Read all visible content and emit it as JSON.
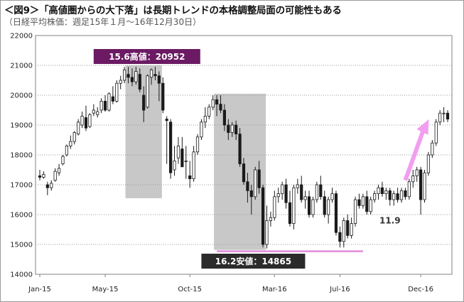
{
  "header": {
    "title": "＜図9＞「高値圏からの大下落」は長期トレンドの本格調整局面の可能性もある",
    "subtitle": "（日経平均株価：週足15年１月～16年12月30日）"
  },
  "colors": {
    "up": "#ffffff",
    "down": "#1a1a1a",
    "shade": "#c8c8c8",
    "high_label_bg": "#6b1a63",
    "low_label_bg": "#2b2b2b",
    "support_line": "#e28ad9",
    "arrow": "#f29ef0"
  },
  "chart_data": {
    "type": "candlestick",
    "frequency": "weekly",
    "ylim": [
      14000,
      22000
    ],
    "y_ticks": [
      "22000",
      "21000",
      "20000",
      "19000",
      "18000",
      "17000",
      "16000",
      "15000",
      "14000"
    ],
    "x_ticks": [
      "Jan-15",
      "May-15",
      "Oct-15",
      "Mar-16",
      "Jul-16",
      "Dec-16"
    ],
    "grid": "horizontal dotted",
    "candles": [
      [
        17300,
        17500,
        17150,
        17250
      ],
      [
        17250,
        17450,
        17200,
        17350
      ],
      [
        17000,
        17100,
        16650,
        16900
      ],
      [
        16900,
        17150,
        16800,
        17050
      ],
      [
        17150,
        17550,
        17100,
        17450
      ],
      [
        17400,
        17700,
        17300,
        17550
      ],
      [
        17700,
        18000,
        17650,
        17950
      ],
      [
        18000,
        18350,
        17950,
        18300
      ],
      [
        18300,
        18650,
        18200,
        18450
      ],
      [
        18450,
        18800,
        18350,
        18750
      ],
      [
        18700,
        19200,
        18650,
        19100
      ],
      [
        19000,
        19450,
        18900,
        19300
      ],
      [
        19250,
        19650,
        18800,
        18900
      ],
      [
        18950,
        19400,
        18900,
        19350
      ],
      [
        19400,
        19700,
        19300,
        19500
      ],
      [
        19350,
        19600,
        19250,
        19450
      ],
      [
        19500,
        19900,
        19400,
        19800
      ],
      [
        19800,
        20000,
        19450,
        19500
      ],
      [
        19500,
        20100,
        19450,
        20050
      ],
      [
        19950,
        20300,
        19700,
        19800
      ],
      [
        19800,
        20500,
        19750,
        20400
      ],
      [
        20400,
        20650,
        20200,
        20500
      ],
      [
        20500,
        20950,
        20400,
        20850
      ],
      [
        20700,
        20950,
        20400,
        20600
      ],
      [
        20600,
        20900,
        20300,
        20450
      ],
      [
        20450,
        20950,
        20350,
        20800
      ],
      [
        20700,
        20900,
        20100,
        20200
      ],
      [
        20000,
        20300,
        19100,
        19500
      ],
      [
        19600,
        20700,
        19550,
        20650
      ],
      [
        20600,
        20900,
        20350,
        20850
      ],
      [
        20700,
        20952,
        20500,
        20650
      ],
      [
        20650,
        20800,
        19800,
        20400
      ],
      [
        20400,
        20600,
        19400,
        19500
      ],
      [
        19200,
        19300,
        17700,
        19150
      ],
      [
        19100,
        19200,
        17200,
        17400
      ],
      [
        17500,
        18300,
        17300,
        17800
      ],
      [
        17900,
        18600,
        17700,
        18300
      ],
      [
        18200,
        18600,
        17600,
        17600
      ],
      [
        17800,
        18300,
        17200,
        17800
      ],
      [
        17300,
        17800,
        16900,
        17200
      ],
      [
        17200,
        18300,
        17100,
        18100
      ],
      [
        18100,
        18700,
        18000,
        18600
      ],
      [
        18600,
        19200,
        18500,
        19100
      ],
      [
        19100,
        19600,
        18900,
        19300
      ],
      [
        19300,
        19700,
        19200,
        19600
      ],
      [
        19600,
        20000,
        19500,
        19850
      ],
      [
        19850,
        20000,
        19300,
        19700
      ],
      [
        19700,
        20000,
        19400,
        19500
      ],
      [
        19500,
        19700,
        18800,
        19000
      ],
      [
        19000,
        19200,
        18500,
        18750
      ],
      [
        18750,
        19100,
        18600,
        19000
      ],
      [
        19000,
        19150,
        18500,
        18700
      ],
      [
        18700,
        18900,
        17600,
        17700
      ],
      [
        17700,
        17900,
        17000,
        17100
      ],
      [
        17100,
        17400,
        16400,
        16800
      ],
      [
        16800,
        17000,
        16000,
        16600
      ],
      [
        16600,
        17600,
        16500,
        17500
      ],
      [
        17500,
        17800,
        16700,
        16900
      ],
      [
        16900,
        17000,
        14900,
        15000
      ],
      [
        15000,
        16300,
        14865,
        15800
      ],
      [
        15800,
        16100,
        15600,
        15900
      ],
      [
        15900,
        16800,
        15800,
        16600
      ],
      [
        16600,
        16900,
        16400,
        16700
      ],
      [
        16700,
        17100,
        16500,
        17000
      ],
      [
        17000,
        17200,
        16200,
        16400
      ],
      [
        16400,
        16800,
        15600,
        15700
      ],
      [
        15700,
        17000,
        15500,
        16900
      ],
      [
        16900,
        17200,
        16700,
        17000
      ],
      [
        17000,
        17300,
        16400,
        16500
      ],
      [
        16500,
        16800,
        16200,
        16600
      ],
      [
        16600,
        16800,
        15900,
        16000
      ],
      [
        16000,
        16600,
        15900,
        16500
      ],
      [
        16500,
        17100,
        16400,
        17000
      ],
      [
        17000,
        17300,
        16500,
        16600
      ],
      [
        16600,
        16800,
        15900,
        16000
      ],
      [
        16000,
        16600,
        15700,
        16500
      ],
      [
        16500,
        16900,
        16400,
        16700
      ],
      [
        16700,
        16800,
        15300,
        15400
      ],
      [
        15400,
        15600,
        14900,
        15100
      ],
      [
        15100,
        15900,
        14900,
        15800
      ],
      [
        15800,
        16000,
        15200,
        15300
      ],
      [
        15300,
        15900,
        15200,
        15700
      ],
      [
        15700,
        16600,
        15600,
        16500
      ],
      [
        16500,
        16700,
        16200,
        16300
      ],
      [
        16300,
        16700,
        16200,
        16600
      ],
      [
        16600,
        16800,
        16000,
        16100
      ],
      [
        16100,
        16600,
        16000,
        16500
      ],
      [
        16500,
        16800,
        16400,
        16700
      ],
      [
        16700,
        17000,
        16500,
        16900
      ],
      [
        16900,
        17100,
        16600,
        16700
      ],
      [
        16700,
        16900,
        16500,
        16800
      ],
      [
        16800,
        16900,
        16300,
        16500
      ],
      [
        16500,
        16800,
        16300,
        16700
      ],
      [
        16700,
        16900,
        16400,
        16500
      ],
      [
        16500,
        16900,
        16400,
        16800
      ],
      [
        16800,
        16900,
        16500,
        16600
      ],
      [
        16600,
        17200,
        16500,
        17100
      ],
      [
        17100,
        17500,
        16900,
        17300
      ],
      [
        17300,
        17600,
        17100,
        17500
      ],
      [
        17500,
        17600,
        16000,
        16500
      ],
      [
        16500,
        17500,
        16400,
        17400
      ],
      [
        17400,
        18100,
        17300,
        18000
      ],
      [
        18000,
        18500,
        17900,
        18400
      ],
      [
        18400,
        19200,
        18300,
        19100
      ],
      [
        19100,
        19500,
        19000,
        19400
      ],
      [
        19400,
        19600,
        19100,
        19400
      ],
      [
        19400,
        19500,
        19100,
        19200
      ]
    ],
    "annotations": {
      "high": "15.6高値：20952",
      "low": "16.2安値：14865",
      "ratio": "11.9"
    }
  }
}
